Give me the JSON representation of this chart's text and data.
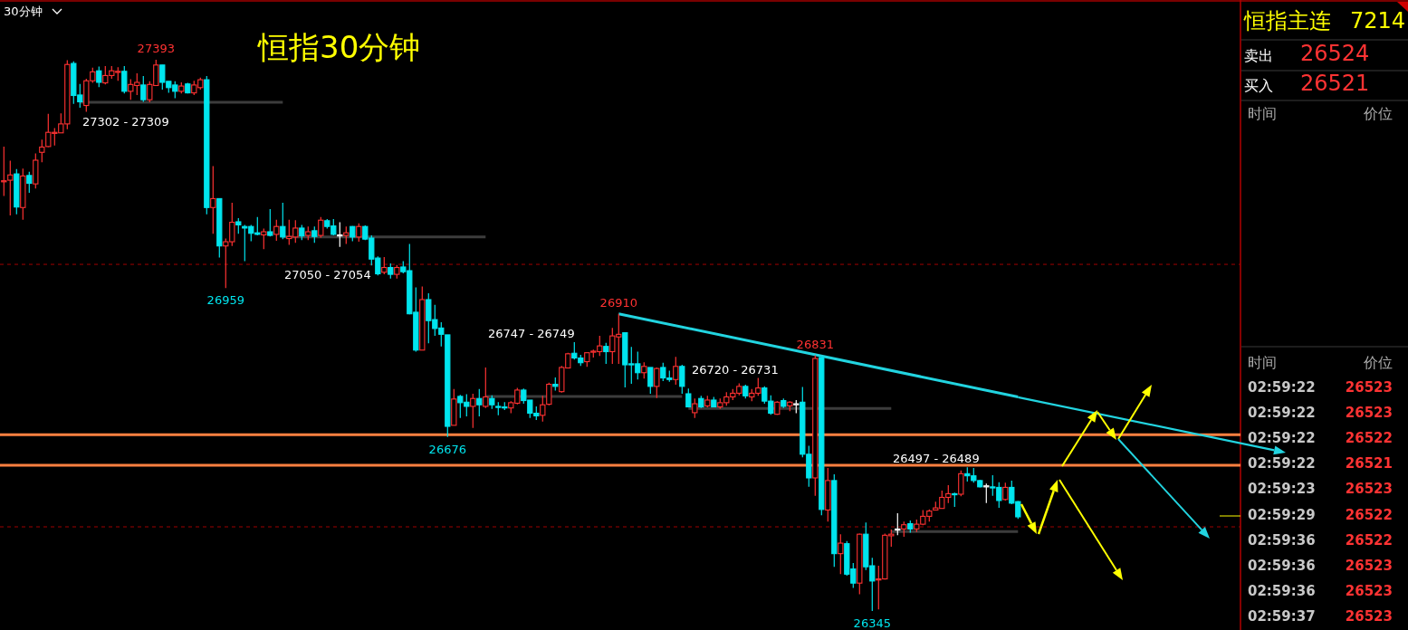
{
  "chart_data": {
    "type": "candlestick",
    "title": "恒指30分钟",
    "tick_labels": false,
    "categories": [
      null,
      null,
      null,
      null,
      null,
      null,
      null,
      null,
      null,
      null,
      null,
      null,
      null,
      null,
      null,
      null,
      null,
      null,
      null,
      null,
      null,
      null,
      null,
      null,
      null,
      null,
      null,
      null,
      null,
      null,
      null,
      null,
      null,
      null,
      null,
      null,
      null,
      null,
      null,
      null,
      null,
      null,
      null,
      null,
      null,
      null,
      null,
      null,
      null,
      null,
      null,
      null,
      null,
      null,
      null,
      null,
      null,
      null,
      null,
      null,
      null,
      null,
      null,
      null,
      null,
      null,
      null,
      null,
      null,
      null,
      null,
      null,
      null,
      null,
      null,
      null,
      null,
      null,
      null,
      null,
      null,
      null,
      null,
      null,
      null,
      null,
      null,
      null,
      null,
      null,
      null,
      null,
      null,
      null,
      null,
      null,
      null,
      null,
      null,
      null,
      null,
      null,
      null,
      null,
      null,
      null,
      null,
      null,
      null,
      null,
      null,
      null,
      null,
      null,
      null,
      null,
      null,
      null,
      null,
      null,
      null,
      null,
      null,
      null,
      null,
      null,
      null,
      null,
      null,
      null,
      null,
      null,
      null,
      null,
      null,
      null,
      null,
      null,
      null,
      null,
      null,
      null,
      null,
      null,
      null,
      null,
      null,
      null,
      null,
      null,
      null,
      null,
      null,
      null,
      null,
      null,
      null,
      null,
      null,
      null,
      null
    ],
    "ohlc": [
      [
        27162,
        27228,
        27134,
        27163
      ],
      [
        27164,
        27201,
        27097,
        27174
      ],
      [
        27176,
        27185,
        27099,
        27113
      ],
      [
        27112,
        27186,
        27089,
        27172
      ],
      [
        27173,
        27180,
        27140,
        27158
      ],
      [
        27157,
        27215,
        27148,
        27202
      ],
      [
        27217,
        27241,
        27198,
        27227
      ],
      [
        27228,
        27290,
        27227,
        27255
      ],
      [
        27254,
        27263,
        27230,
        27255
      ],
      [
        27254,
        27291,
        27254,
        27271
      ],
      [
        27271,
        27392,
        27261,
        27384
      ],
      [
        27386,
        27390,
        27309,
        27325
      ],
      [
        27326,
        27347,
        27302,
        27313
      ],
      [
        27306,
        27357,
        27294,
        27353
      ],
      [
        27353,
        27378,
        27349,
        27370
      ],
      [
        27372,
        27380,
        27341,
        27350
      ],
      [
        27349,
        27381,
        27346,
        27363
      ],
      [
        27363,
        27381,
        27357,
        27372
      ],
      [
        27369,
        27379,
        27353,
        27371
      ],
      [
        27371,
        27381,
        27329,
        27333
      ],
      [
        27333,
        27356,
        27317,
        27346
      ],
      [
        27344,
        27367,
        27326,
        27350
      ],
      [
        27345,
        27362,
        27313,
        27317
      ],
      [
        27317,
        27352,
        27312,
        27346
      ],
      [
        27344,
        27393,
        27343,
        27383
      ],
      [
        27383,
        27383,
        27336,
        27350
      ],
      [
        27352,
        27352,
        27330,
        27340
      ],
      [
        27345,
        27352,
        27320,
        27333
      ],
      [
        27333,
        27350,
        27329,
        27343
      ],
      [
        27347,
        27349,
        27329,
        27330
      ],
      [
        27330,
        27353,
        27326,
        27345
      ],
      [
        27340,
        27359,
        27336,
        27355
      ],
      [
        27355,
        27362,
        27099,
        27112
      ],
      [
        27112,
        27191,
        27062,
        27129
      ],
      [
        27129,
        27129,
        27017,
        27039
      ],
      [
        27039,
        27053,
        26959,
        27047
      ],
      [
        27047,
        27121,
        27039,
        27084
      ],
      [
        27085,
        27092,
        27062,
        27079
      ],
      [
        27076,
        27079,
        27010,
        27073
      ],
      [
        27076,
        27079,
        27048,
        27063
      ],
      [
        27064,
        27094,
        27059,
        27061
      ],
      [
        27060,
        27072,
        27033,
        27066
      ],
      [
        27066,
        27109,
        27057,
        27059
      ],
      [
        27061,
        27089,
        27049,
        27076
      ],
      [
        27076,
        27121,
        27052,
        27056
      ],
      [
        27053,
        27089,
        27041,
        27057
      ],
      [
        27056,
        27088,
        27045,
        27073
      ],
      [
        27073,
        27079,
        27050,
        27058
      ],
      [
        27059,
        27076,
        27050,
        27066
      ],
      [
        27068,
        27076,
        27045,
        27057
      ],
      [
        27059,
        27094,
        27055,
        27088
      ],
      [
        27087,
        27090,
        27072,
        27076
      ],
      [
        27077,
        27090,
        27059,
        27061
      ],
      [
        27060,
        27084,
        27037,
        27060
      ],
      [
        27059,
        27076,
        27043,
        27064
      ],
      [
        27076,
        27077,
        27048,
        27056
      ],
      [
        27056,
        27082,
        27047,
        27076
      ],
      [
        27076,
        27078,
        27050,
        27052
      ],
      [
        27054,
        27059,
        27002,
        27014
      ],
      [
        27016,
        27019,
        26983,
        26986
      ],
      [
        26989,
        27018,
        26985,
        26998
      ],
      [
        26998,
        27006,
        26977,
        26985
      ],
      [
        26985,
        27003,
        26977,
        26998
      ],
      [
        26999,
        27010,
        26987,
        26990
      ],
      [
        26992,
        27043,
        26909,
        26910
      ],
      [
        26913,
        26960,
        26838,
        26841
      ],
      [
        26841,
        26962,
        26841,
        26937
      ],
      [
        26937,
        26949,
        26854,
        26897
      ],
      [
        26899,
        26927,
        26868,
        26882
      ],
      [
        26883,
        26894,
        26848,
        26871
      ],
      [
        26870,
        26870,
        26676,
        26696
      ],
      [
        26698,
        26767,
        26698,
        26748
      ],
      [
        26753,
        26756,
        26712,
        26741
      ],
      [
        26742,
        26757,
        26715,
        26734
      ],
      [
        26734,
        26758,
        26693,
        26749
      ],
      [
        26749,
        26767,
        26715,
        26737
      ],
      [
        26734,
        26808,
        26731,
        26752
      ],
      [
        26749,
        26755,
        26729,
        26737
      ],
      [
        26734,
        26742,
        26717,
        26733
      ],
      [
        26733,
        26742,
        26727,
        26732
      ],
      [
        26731,
        26744,
        26721,
        26741
      ],
      [
        26740,
        26769,
        26738,
        26765
      ],
      [
        26765,
        26768,
        26739,
        26745
      ],
      [
        26746,
        26746,
        26712,
        26721
      ],
      [
        26721,
        26734,
        26708,
        26716
      ],
      [
        26717,
        26754,
        26705,
        26737
      ],
      [
        26738,
        26779,
        26736,
        26776
      ],
      [
        26776,
        26789,
        26764,
        26772
      ],
      [
        26762,
        26811,
        26760,
        26808
      ],
      [
        26807,
        26836,
        26806,
        26834
      ],
      [
        26835,
        26856,
        26823,
        26826
      ],
      [
        26826,
        26832,
        26811,
        26817
      ],
      [
        26819,
        26836,
        26809,
        26836
      ],
      [
        26838,
        26842,
        26827,
        26839
      ],
      [
        26838,
        26868,
        26830,
        26849
      ],
      [
        26848,
        26855,
        26815,
        26838
      ],
      [
        26838,
        26883,
        26815,
        26868
      ],
      [
        26866,
        26910,
        26815,
        26871
      ],
      [
        26874,
        26874,
        26770,
        26813
      ],
      [
        26815,
        26847,
        26777,
        26814
      ],
      [
        26815,
        26838,
        26785,
        26798
      ],
      [
        26798,
        26818,
        26787,
        26810
      ],
      [
        26808,
        26808,
        26758,
        26772
      ],
      [
        26772,
        26808,
        26750,
        26806
      ],
      [
        26808,
        26817,
        26782,
        26788
      ],
      [
        26788,
        26802,
        26781,
        26785
      ],
      [
        26785,
        26828,
        26775,
        26810
      ],
      [
        26810,
        26813,
        26758,
        26772
      ],
      [
        26758,
        26768,
        26732,
        26733
      ],
      [
        26722,
        26749,
        26712,
        26739
      ],
      [
        26749,
        26754,
        26731,
        26733
      ],
      [
        26735,
        26754,
        26732,
        26746
      ],
      [
        26746,
        26752,
        26732,
        26733
      ],
      [
        26733,
        26749,
        26729,
        26741
      ],
      [
        26741,
        26761,
        26735,
        26752
      ],
      [
        26752,
        26767,
        26746,
        26759
      ],
      [
        26759,
        26778,
        26755,
        26772
      ],
      [
        26772,
        26775,
        26749,
        26754
      ],
      [
        26752,
        26767,
        26744,
        26759
      ],
      [
        26759,
        26788,
        26754,
        26769
      ],
      [
        26769,
        26772,
        26739,
        26744
      ],
      [
        26744,
        26755,
        26718,
        26721
      ],
      [
        26719,
        26744,
        26718,
        26742
      ],
      [
        26745,
        26749,
        26731,
        26734
      ],
      [
        26735,
        26744,
        26725,
        26742
      ],
      [
        26739,
        26746,
        26721,
        26739
      ],
      [
        26742,
        26771,
        26637,
        26643
      ],
      [
        26643,
        26659,
        26581,
        26598
      ],
      [
        26598,
        26831,
        26564,
        26825
      ],
      [
        26827,
        26827,
        26527,
        26538
      ],
      [
        26537,
        26617,
        26515,
        26593
      ],
      [
        26593,
        26605,
        26429,
        26454
      ],
      [
        26454,
        26491,
        26415,
        26474
      ],
      [
        26473,
        26478,
        26412,
        26415
      ],
      [
        26425,
        26436,
        26389,
        26398
      ],
      [
        26398,
        26492,
        26377,
        26491
      ],
      [
        26491,
        26513,
        26423,
        26429
      ],
      [
        26431,
        26446,
        26345,
        26402
      ],
      [
        26405,
        26431,
        26348,
        26406
      ],
      [
        26406,
        26492,
        26405,
        26489
      ],
      [
        26488,
        26500,
        26467,
        26491
      ],
      [
        26501,
        26531,
        26489,
        26501
      ],
      [
        26501,
        26515,
        26486,
        26509
      ],
      [
        26511,
        26517,
        26494,
        26501
      ],
      [
        26501,
        26519,
        26495,
        26510
      ],
      [
        26510,
        26537,
        26508,
        26525
      ],
      [
        26525,
        26538,
        26515,
        26535
      ],
      [
        26537,
        26553,
        26536,
        26541
      ],
      [
        26540,
        26574,
        26540,
        26561
      ],
      [
        26561,
        26584,
        26550,
        26568
      ],
      [
        26568,
        26570,
        26543,
        26567
      ],
      [
        26567,
        26612,
        26563,
        26606
      ],
      [
        26606,
        26618,
        26591,
        26602
      ],
      [
        26602,
        26617,
        26589,
        26593
      ],
      [
        26593,
        26594,
        26580,
        26581
      ],
      [
        26583,
        26587,
        26550,
        26583
      ],
      [
        26581,
        26603,
        26564,
        26579
      ],
      [
        26580,
        26590,
        26541,
        26555
      ],
      [
        26557,
        26589,
        26555,
        26580
      ],
      [
        26580,
        26593,
        26548,
        26550
      ],
      [
        26553,
        26554,
        26520,
        26524
      ]
    ],
    "colors": [
      "#ff3232",
      "#ff3232",
      "#00e5ee",
      "#ff3232",
      "#00e5ee",
      "#ff3232",
      "#ff3232",
      "#ff3232",
      "#ff3232",
      "#ff3232",
      "#ff3232",
      "#00e5ee",
      "#00e5ee",
      "#ff3232",
      "#ff3232",
      "#00e5ee",
      "#ff3232",
      "#ff3232",
      "#ff3232",
      "#00e5ee",
      "#ff3232",
      "#ff3232",
      "#00e5ee",
      "#ff3232",
      "#ff3232",
      "#00e5ee",
      "#00e5ee",
      "#00e5ee",
      "#ff3232",
      "#00e5ee",
      "#ff3232",
      "#ff3232",
      "#00e5ee",
      "#ff3232",
      "#00e5ee",
      "#ff3232",
      "#ff3232",
      "#00e5ee",
      "#00e5ee",
      "#00e5ee",
      "#00e5ee",
      "#ff3232",
      "#00e5ee",
      "#ff3232",
      "#00e5ee",
      "#ff3232",
      "#ff3232",
      "#00e5ee",
      "#ff3232",
      "#00e5ee",
      "#ff3232",
      "#00e5ee",
      "#00e5ee",
      "#ffffff",
      "#ff3232",
      "#00e5ee",
      "#ff3232",
      "#00e5ee",
      "#00e5ee",
      "#00e5ee",
      "#ff3232",
      "#00e5ee",
      "#ff3232",
      "#00e5ee",
      "#00e5ee",
      "#00e5ee",
      "#ff3232",
      "#00e5ee",
      "#00e5ee",
      "#00e5ee",
      "#00e5ee",
      "#ff3232",
      "#00e5ee",
      "#00e5ee",
      "#ff3232",
      "#00e5ee",
      "#ff3232",
      "#00e5ee",
      "#00e5ee",
      "#00e5ee",
      "#ff3232",
      "#ff3232",
      "#00e5ee",
      "#00e5ee",
      "#00e5ee",
      "#ff3232",
      "#ff3232",
      "#00e5ee",
      "#ff3232",
      "#ff3232",
      "#00e5ee",
      "#00e5ee",
      "#ff3232",
      "#ff3232",
      "#ff3232",
      "#00e5ee",
      "#ff3232",
      "#ff3232",
      "#00e5ee",
      "#00e5ee",
      "#00e5ee",
      "#ff3232",
      "#00e5ee",
      "#ff3232",
      "#00e5ee",
      "#00e5ee",
      "#ff3232",
      "#00e5ee",
      "#00e5ee",
      "#ff3232",
      "#00e5ee",
      "#ff3232",
      "#00e5ee",
      "#ff3232",
      "#ff3232",
      "#ff3232",
      "#ff3232",
      "#00e5ee",
      "#ff3232",
      "#ff3232",
      "#00e5ee",
      "#00e5ee",
      "#ff3232",
      "#00e5ee",
      "#ff3232",
      "#ffffff",
      "#00e5ee",
      "#00e5ee",
      "#ff3232",
      "#00e5ee",
      "#ff3232",
      "#00e5ee",
      "#ff3232",
      "#00e5ee",
      "#00e5ee",
      "#ff3232",
      "#00e5ee",
      "#00e5ee",
      "#ff3232",
      "#ff3232",
      "#ff3232",
      "#ffffff",
      "#ff3232",
      "#00e5ee",
      "#ff3232",
      "#ff3232",
      "#ff3232",
      "#ff3232",
      "#ff3232",
      "#ff3232",
      "#00e5ee",
      "#ff3232",
      "#00e5ee",
      "#00e5ee",
      "#00e5ee",
      "#ffffff",
      "#00e5ee",
      "#00e5ee",
      "#ff3232",
      "#00e5ee",
      "#00e5ee"
    ],
    "series": [
      {
        "type": "line",
        "color": "#3c3c3c",
        "values": [
          null,
          null,
          null,
          null,
          null,
          null,
          null,
          null,
          null,
          null,
          null,
          null,
          27312,
          27312,
          27312,
          27312,
          27312,
          27312,
          27312,
          27312,
          27312,
          27312,
          27312,
          27312,
          27312,
          27312,
          27312,
          27312,
          27312,
          27312,
          27312,
          27312,
          27312,
          27312,
          27312,
          27312,
          27312,
          27312,
          27312,
          27312,
          27312,
          27312,
          27312,
          27312,
          27312,
          null,
          null,
          null,
          null,
          null,
          null,
          null,
          null,
          null,
          null,
          null,
          null,
          null,
          null,
          null,
          null,
          null,
          null,
          null,
          null,
          null,
          null,
          null,
          null,
          null,
          null,
          null,
          null,
          null,
          null,
          null,
          null,
          null,
          null,
          null,
          null,
          null,
          null,
          null,
          null,
          null,
          null,
          null,
          null,
          null,
          null,
          null,
          null,
          null,
          null,
          null,
          null,
          null,
          null,
          null,
          null,
          null,
          null,
          null,
          null,
          null,
          null,
          null,
          null,
          null,
          null,
          null,
          null,
          null,
          null,
          null,
          null,
          null,
          null,
          null,
          null,
          null,
          null,
          null,
          null,
          null,
          null,
          null,
          null,
          null,
          null,
          null,
          null,
          null,
          null,
          null,
          null,
          null,
          null,
          null,
          null,
          null,
          null,
          null,
          null,
          null,
          null,
          null,
          null,
          null,
          null,
          null,
          null,
          null,
          null,
          null,
          null,
          null,
          null,
          null,
          null
        ]
      },
      {
        "type": "line",
        "color": "#3c3c3c",
        "values": [
          null,
          null,
          null,
          null,
          null,
          null,
          null,
          null,
          null,
          null,
          null,
          null,
          null,
          null,
          null,
          null,
          null,
          null,
          null,
          null,
          null,
          null,
          null,
          null,
          null,
          null,
          null,
          null,
          null,
          null,
          null,
          null,
          null,
          null,
          null,
          null,
          null,
          null,
          null,
          null,
          null,
          null,
          null,
          null,
          27056,
          27056,
          27056,
          27056,
          27056,
          27056,
          27056,
          27056,
          27056,
          27056,
          27056,
          27056,
          27056,
          27056,
          27056,
          27056,
          27056,
          27056,
          27056,
          27056,
          27056,
          27056,
          27056,
          27056,
          27056,
          27056,
          27056,
          27056,
          27056,
          27056,
          27056,
          27056,
          27056,
          null,
          null,
          null,
          null,
          null,
          null,
          null,
          null,
          null,
          null,
          null,
          null,
          null,
          null,
          null,
          null,
          null,
          null,
          null,
          null,
          null,
          null,
          null,
          null,
          null,
          null,
          null,
          null,
          null,
          null,
          null,
          null,
          null,
          null,
          null,
          null,
          null,
          null,
          null,
          null,
          null,
          null,
          null,
          null,
          null,
          null,
          null,
          null,
          null,
          null,
          null,
          null,
          null,
          null,
          null,
          null,
          null,
          null,
          null,
          null,
          null,
          null,
          null,
          null,
          null,
          null,
          null,
          null,
          null,
          null,
          null,
          null,
          null,
          null,
          null,
          null,
          null,
          null,
          null,
          null,
          null,
          null,
          null,
          null
        ]
      },
      {
        "type": "line",
        "color": "#3c3c3c",
        "values": [
          null,
          null,
          null,
          null,
          null,
          null,
          null,
          null,
          null,
          null,
          null,
          null,
          null,
          null,
          null,
          null,
          null,
          null,
          null,
          null,
          null,
          null,
          null,
          null,
          null,
          null,
          null,
          null,
          null,
          null,
          null,
          null,
          null,
          null,
          null,
          null,
          null,
          null,
          null,
          null,
          null,
          null,
          null,
          null,
          null,
          null,
          null,
          null,
          null,
          null,
          null,
          null,
          null,
          null,
          null,
          null,
          null,
          null,
          null,
          null,
          null,
          null,
          null,
          null,
          null,
          null,
          null,
          null,
          null,
          null,
          null,
          null,
          null,
          null,
          null,
          null,
          26753,
          26753,
          26753,
          26753,
          26753,
          26753,
          26753,
          26753,
          26753,
          26753,
          26753,
          26753,
          26753,
          26753,
          26753,
          26753,
          26753,
          26753,
          26753,
          26753,
          26753,
          26753,
          26753,
          26753,
          26753,
          26753,
          26753,
          26753,
          26753,
          26753,
          26753,
          26753,
          null,
          null,
          null,
          null,
          null,
          null,
          null,
          null,
          null,
          null,
          null,
          null,
          null,
          null,
          null,
          null,
          null,
          null,
          null,
          null,
          null,
          null,
          null,
          null,
          null,
          null,
          null,
          null,
          null,
          null,
          null,
          null,
          null,
          null,
          null,
          null,
          null,
          null,
          null,
          null,
          null,
          null,
          null,
          null,
          null,
          null,
          null,
          null,
          null,
          null,
          null,
          null,
          null
        ]
      },
      {
        "type": "line",
        "color": "#3c3c3c",
        "values": [
          null,
          null,
          null,
          null,
          null,
          null,
          null,
          null,
          null,
          null,
          null,
          null,
          null,
          null,
          null,
          null,
          null,
          null,
          null,
          null,
          null,
          null,
          null,
          null,
          null,
          null,
          null,
          null,
          null,
          null,
          null,
          null,
          null,
          null,
          null,
          null,
          null,
          null,
          null,
          null,
          null,
          null,
          null,
          null,
          null,
          null,
          null,
          null,
          null,
          null,
          null,
          null,
          null,
          null,
          null,
          null,
          null,
          null,
          null,
          null,
          null,
          null,
          null,
          null,
          null,
          null,
          null,
          null,
          null,
          null,
          null,
          null,
          null,
          null,
          null,
          null,
          null,
          null,
          null,
          null,
          null,
          null,
          null,
          null,
          null,
          null,
          null,
          null,
          null,
          null,
          null,
          null,
          null,
          null,
          null,
          null,
          null,
          null,
          null,
          null,
          null,
          null,
          null,
          null,
          null,
          null,
          null,
          null,
          26730,
          26730,
          26730,
          26730,
          26730,
          26730,
          26730,
          26730,
          26730,
          26730,
          26730,
          26730,
          26730,
          26730,
          26730,
          26730,
          26730,
          26730,
          26730,
          26730,
          26730,
          26730,
          26730,
          26730,
          26730,
          26730,
          26730,
          26730,
          26730,
          26730,
          26730,
          26730,
          26730,
          null,
          null,
          null,
          null,
          null,
          null,
          null,
          null,
          null,
          null,
          null,
          null,
          null,
          null,
          null,
          null,
          null,
          null,
          null,
          null
        ]
      },
      {
        "type": "line",
        "color": "#3c3c3c",
        "values": [
          null,
          null,
          null,
          null,
          null,
          null,
          null,
          null,
          null,
          null,
          null,
          null,
          null,
          null,
          null,
          null,
          null,
          null,
          null,
          null,
          null,
          null,
          null,
          null,
          null,
          null,
          null,
          null,
          null,
          null,
          null,
          null,
          null,
          null,
          null,
          null,
          null,
          null,
          null,
          null,
          null,
          null,
          null,
          null,
          null,
          null,
          null,
          null,
          null,
          null,
          null,
          null,
          null,
          null,
          null,
          null,
          null,
          null,
          null,
          null,
          null,
          null,
          null,
          null,
          null,
          null,
          null,
          null,
          null,
          null,
          null,
          null,
          null,
          null,
          null,
          null,
          null,
          null,
          null,
          null,
          null,
          null,
          null,
          null,
          null,
          null,
          null,
          null,
          null,
          null,
          null,
          null,
          null,
          null,
          null,
          null,
          null,
          null,
          null,
          null,
          null,
          null,
          null,
          null,
          null,
          null,
          null,
          null,
          null,
          null,
          null,
          null,
          null,
          null,
          null,
          null,
          null,
          null,
          null,
          null,
          null,
          null,
          null,
          null,
          null,
          null,
          null,
          null,
          null,
          null,
          null,
          null,
          null,
          null,
          null,
          null,
          null,
          null,
          null,
          null,
          26496,
          26496,
          26496,
          26496,
          26496,
          26496,
          26496,
          26496,
          26496,
          26496,
          26496,
          26496,
          26496,
          26496,
          26496,
          26496,
          26496,
          26496,
          26496,
          26496,
          26496
        ]
      },
      {
        "type": "line",
        "color": "#22d4e0",
        "values": [
          null,
          null,
          null,
          null,
          null,
          null,
          null,
          null,
          null,
          null,
          null,
          null,
          null,
          null,
          null,
          null,
          null,
          null,
          null,
          null,
          null,
          null,
          null,
          null,
          null,
          null,
          null,
          null,
          null,
          null,
          null,
          null,
          null,
          null,
          null,
          null,
          null,
          null,
          null,
          null,
          null,
          null,
          null,
          null,
          null,
          null,
          null,
          null,
          null,
          null,
          null,
          null,
          null,
          null,
          null,
          null,
          null,
          null,
          null,
          null,
          null,
          null,
          null,
          null,
          null,
          null,
          null,
          null,
          null,
          null,
          null,
          null,
          null,
          null,
          null,
          null,
          null,
          null,
          null,
          null,
          null,
          null,
          null,
          null,
          null,
          null,
          null,
          null,
          null,
          null,
          null,
          null,
          null,
          null,
          null,
          null,
          null,
          26910,
          null,
          null,
          null,
          null,
          null,
          null,
          null,
          null,
          null,
          null,
          null,
          null,
          null,
          null,
          null,
          null,
          null,
          null,
          null,
          null,
          null,
          null,
          null,
          null,
          null,
          null,
          null,
          null,
          null,
          null,
          null,
          null,
          null,
          null,
          null,
          null,
          null,
          null,
          null,
          null,
          null,
          null,
          null,
          null,
          null,
          null,
          null,
          null,
          null,
          null,
          null,
          null,
          null,
          null,
          null,
          null,
          null,
          null,
          null,
          null,
          null,
          null,
          26752
        ]
      }
    ],
    "ref_lines": [
      {
        "axis": "y",
        "value": 26680,
        "color": "#ff8040"
      },
      {
        "axis": "y",
        "value": 26622,
        "color": "#ff8040"
      },
      {
        "axis": "y",
        "value": 27004,
        "color": "#a00000",
        "line_style": "dashed"
      },
      {
        "axis": "y",
        "value": 26505,
        "color": "#a00000",
        "line_style": "dashed"
      }
    ],
    "annotations": [
      {
        "text": "27393",
        "y": 27393
      },
      {
        "text": "26959",
        "y": 26959
      },
      {
        "text": "26910",
        "y": 26910
      },
      {
        "text": "26676",
        "y": 26676
      },
      {
        "text": "26831",
        "y": 26831
      },
      {
        "text": "26345",
        "y": 26345
      },
      "27302 - 27309",
      "27050 - 27054",
      "26747 - 26749",
      "26720 - 26731",
      "26497 - 26489",
      "30分钟",
      "恒指主连",
      "7214",
      "卖出",
      "26524",
      "买入",
      "26521",
      "时间",
      "价位",
      "时间",
      "价位",
      "02:59:22",
      "26523",
      "02:59:22",
      "26523",
      "02:59:22",
      "26522",
      "02:59:22",
      "26521",
      "02:59:23",
      "26523",
      "02:59:29",
      "26522",
      "02:59:36",
      "26522",
      "02:59:36",
      "26523",
      "02:59:36",
      "26523",
      "02:59:37",
      "26523"
    ]
  }
}
